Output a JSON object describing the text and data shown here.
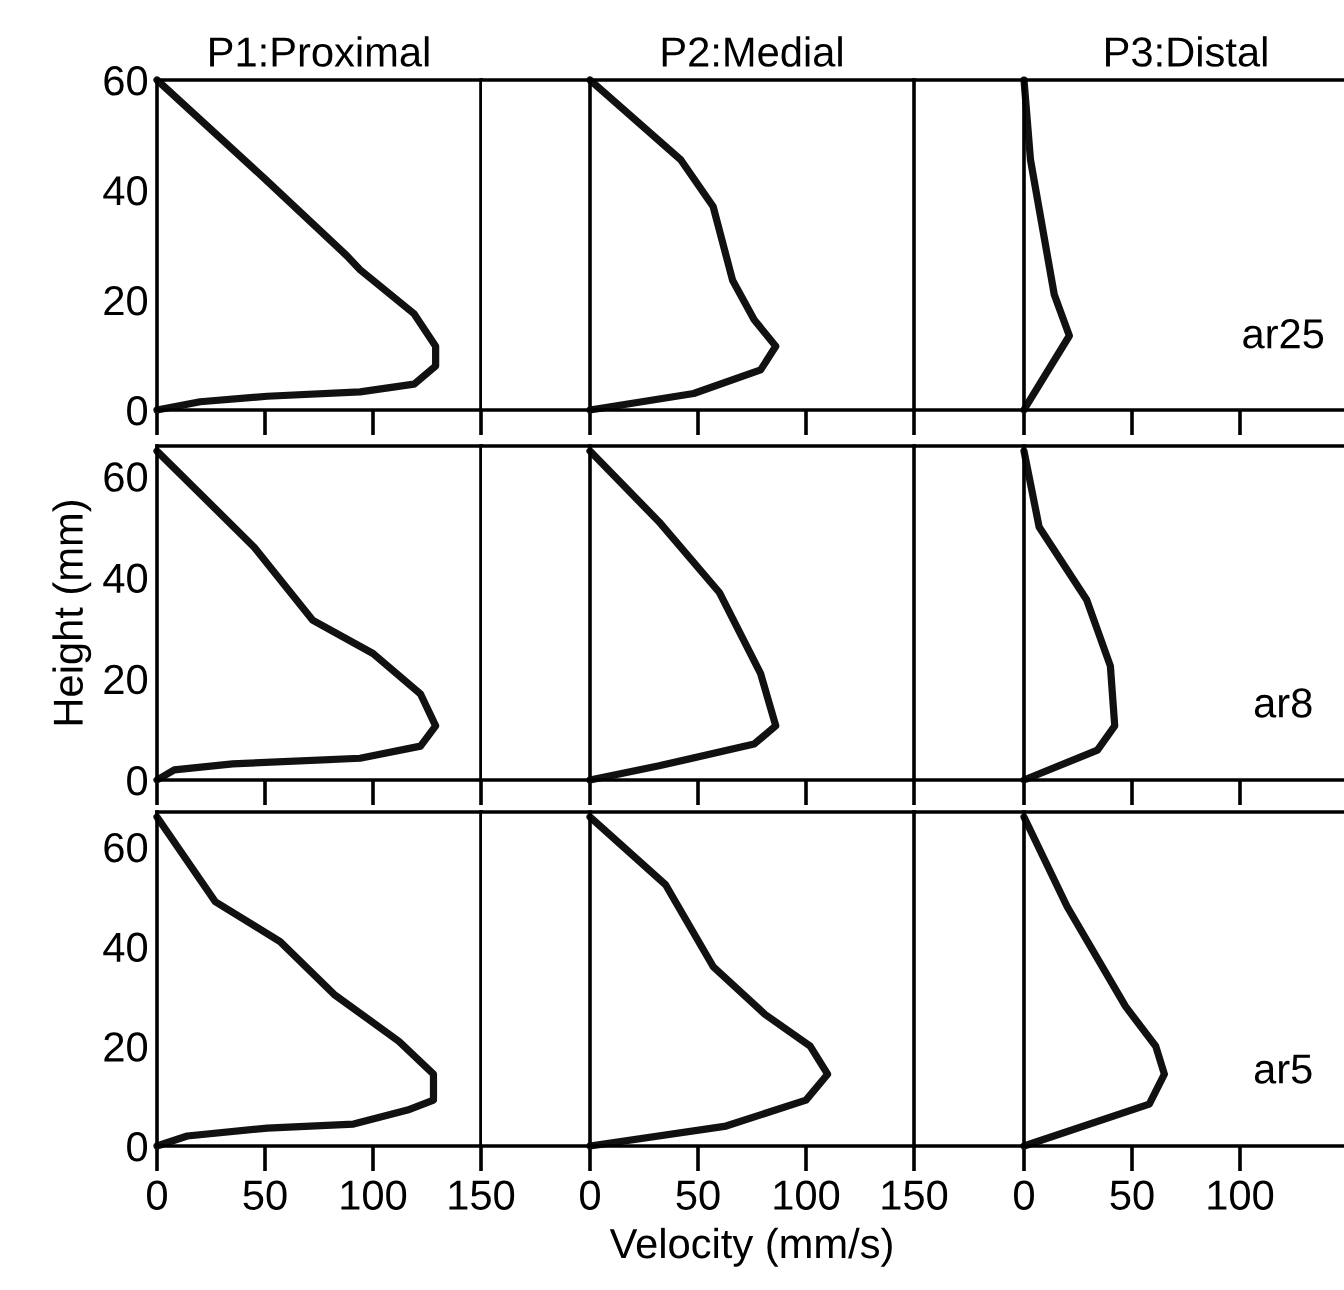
{
  "chart_data": [
    {
      "type": "line",
      "title": "P1:Proximal",
      "series": [
        {
          "color": "#111111",
          "x": [
            0,
            50,
            88,
            94,
            119,
            129,
            129,
            119,
            94,
            51,
            20,
            0
          ],
          "values": [
            60,
            42,
            28,
            25.5,
            17.5,
            11.6,
            8,
            4.7,
            3.3,
            2.5,
            1.5,
            0
          ]
        }
      ],
      "xlim": [
        0,
        150
      ],
      "ylim": [
        0,
        60
      ],
      "xticks": [
        0,
        50,
        100,
        150
      ],
      "yticks": [
        0,
        20,
        40,
        60
      ],
      "tick_labels": "y"
    },
    {
      "type": "line",
      "title": "P2:Medial",
      "series": [
        {
          "color": "#111111",
          "x": [
            0,
            42,
            57,
            66,
            76,
            86,
            79,
            48,
            0
          ],
          "values": [
            60,
            45.5,
            37,
            23.6,
            16.4,
            11.6,
            7.3,
            3,
            0
          ]
        }
      ],
      "xlim": [
        -50,
        150
      ],
      "ylim": [
        0,
        60
      ],
      "xticks": [
        0,
        50,
        100,
        150
      ],
      "yticks": [
        0,
        20,
        40,
        60
      ],
      "tick_labels": false
    },
    {
      "type": "line",
      "title": "P3:Distal",
      "series": [
        {
          "color": "#111111",
          "x": [
            0,
            3,
            14,
            21,
            1,
            0
          ],
          "values": [
            60,
            45.5,
            21,
            13.5,
            0.7,
            0
          ]
        }
      ],
      "xlim": [
        -50,
        150
      ],
      "ylim": [
        0,
        60
      ],
      "xticks": [
        0,
        50,
        100
      ],
      "yticks": [
        0,
        20,
        40,
        60
      ],
      "tick_labels": false,
      "annotations": [
        "ar25"
      ]
    },
    {
      "type": "line",
      "ylabel": "Height (mm)",
      "series": [
        {
          "color": "#111111",
          "x": [
            0,
            45,
            72,
            100,
            122,
            129,
            122,
            94,
            35,
            8,
            0
          ],
          "values": [
            65,
            46,
            31.6,
            25,
            17,
            10.7,
            6.7,
            4.3,
            3.2,
            2,
            0
          ]
        }
      ],
      "xlim": [
        0,
        150
      ],
      "ylim": [
        0,
        66
      ],
      "xticks": [
        0,
        50,
        100,
        150
      ],
      "yticks": [
        0,
        20,
        40,
        60
      ],
      "tick_labels": "y"
    },
    {
      "type": "line",
      "series": [
        {
          "color": "#111111",
          "x": [
            0,
            32,
            60,
            79,
            86,
            76,
            32,
            0
          ],
          "values": [
            65,
            51,
            37,
            21,
            10.7,
            7.1,
            2.8,
            0
          ]
        }
      ],
      "xlim": [
        -50,
        150
      ],
      "ylim": [
        0,
        66
      ],
      "xticks": [
        0,
        50,
        100,
        150
      ],
      "yticks": [
        0,
        20,
        40,
        60
      ],
      "tick_labels": false
    },
    {
      "type": "line",
      "series": [
        {
          "color": "#111111",
          "x": [
            0,
            7,
            29,
            40,
            42,
            34,
            0
          ],
          "values": [
            65,
            50,
            35.6,
            22.5,
            10.7,
            5.9,
            0
          ]
        }
      ],
      "xlim": [
        -50,
        150
      ],
      "ylim": [
        0,
        66
      ],
      "xticks": [
        0,
        50,
        100
      ],
      "yticks": [
        0,
        20,
        40,
        60
      ],
      "tick_labels": false,
      "annotations": [
        "ar8"
      ]
    },
    {
      "type": "line",
      "series": [
        {
          "color": "#111111",
          "x": [
            0,
            27,
            57,
            82,
            112,
            128,
            128,
            116,
            91,
            51,
            14,
            0
          ],
          "values": [
            66,
            49,
            41,
            30.4,
            21,
            14.4,
            9.2,
            7.2,
            4.4,
            3.6,
            2,
            0
          ]
        }
      ],
      "xlim": [
        0,
        150
      ],
      "ylim": [
        0,
        67
      ],
      "xticks": [
        0,
        50,
        100,
        150
      ],
      "yticks": [
        0,
        20,
        40,
        60
      ]
    },
    {
      "type": "line",
      "xlabel": "Velocity (mm/s)",
      "series": [
        {
          "color": "#111111",
          "x": [
            0,
            35,
            57,
            81,
            102,
            110,
            100,
            63,
            0
          ],
          "values": [
            66,
            52.4,
            36,
            26.4,
            20,
            14.4,
            9.2,
            4,
            0
          ]
        }
      ],
      "xlim": [
        -50,
        150
      ],
      "ylim": [
        0,
        67
      ],
      "xticks": [
        0,
        50,
        100,
        150
      ],
      "yticks": [
        0,
        20,
        40,
        60
      ],
      "tick_labels": "x"
    },
    {
      "type": "line",
      "series": [
        {
          "color": "#111111",
          "x": [
            0,
            20,
            47,
            61,
            65,
            58,
            0
          ],
          "values": [
            66,
            48,
            28,
            20,
            14.4,
            8.4,
            0
          ]
        }
      ],
      "xlim": [
        -50,
        150
      ],
      "ylim": [
        0,
        67
      ],
      "xticks": [
        0,
        50,
        100
      ],
      "yticks": [
        0,
        20,
        40,
        60
      ],
      "tick_labels": "x",
      "annotations": [
        "ar5"
      ]
    }
  ]
}
